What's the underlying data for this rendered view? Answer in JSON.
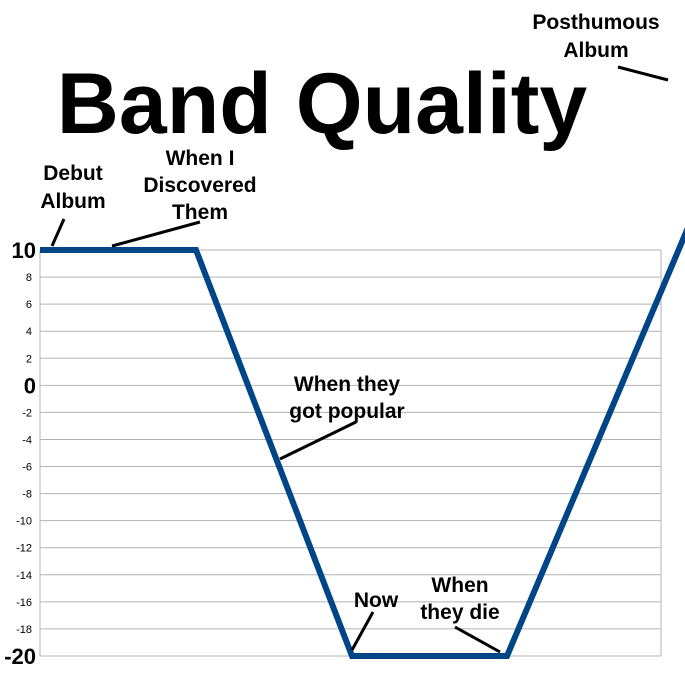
{
  "chart_data": {
    "type": "line",
    "title": "Band Quality",
    "xlabel": "",
    "ylabel": "",
    "ylim": [
      -20,
      10
    ],
    "grid": true,
    "legend": "none",
    "yticks": [
      {
        "value": 10,
        "label": "10",
        "emphasis": true
      },
      {
        "value": 8,
        "label": "8"
      },
      {
        "value": 6,
        "label": "6"
      },
      {
        "value": 4,
        "label": "4"
      },
      {
        "value": 2,
        "label": "2"
      },
      {
        "value": 0,
        "label": "0",
        "emphasis": true
      },
      {
        "value": -2,
        "label": "-2"
      },
      {
        "value": -4,
        "label": "-4"
      },
      {
        "value": -6,
        "label": "-6"
      },
      {
        "value": -8,
        "label": "-8"
      },
      {
        "value": -10,
        "label": "-10"
      },
      {
        "value": -12,
        "label": "-12"
      },
      {
        "value": -14,
        "label": "-14"
      },
      {
        "value": -16,
        "label": "-16"
      },
      {
        "value": -18,
        "label": "-18"
      },
      {
        "value": -20,
        "label": "-20",
        "emphasis": true
      }
    ],
    "series": [
      {
        "color": "#004586",
        "x": [
          0,
          1,
          2,
          3,
          4
        ],
        "y": [
          10,
          10,
          -20,
          -20,
          12
        ]
      }
    ],
    "annotations": [
      {
        "id": "debut-album",
        "lines": [
          "Debut",
          "Album"
        ]
      },
      {
        "id": "when-i-discovered-them",
        "lines": [
          "When I",
          "Discovered",
          "Them"
        ]
      },
      {
        "id": "when-they-got-popular",
        "lines": [
          "When they",
          "got popular"
        ]
      },
      {
        "id": "now",
        "lines": [
          "Now"
        ]
      },
      {
        "id": "when-they-die",
        "lines": [
          "When",
          "they die"
        ]
      },
      {
        "id": "posthumous-album",
        "lines": [
          "Posthumous",
          "Album"
        ]
      }
    ],
    "colors": {
      "line": "#004586",
      "grid": "#b3b3b3",
      "text": "#000000"
    }
  }
}
